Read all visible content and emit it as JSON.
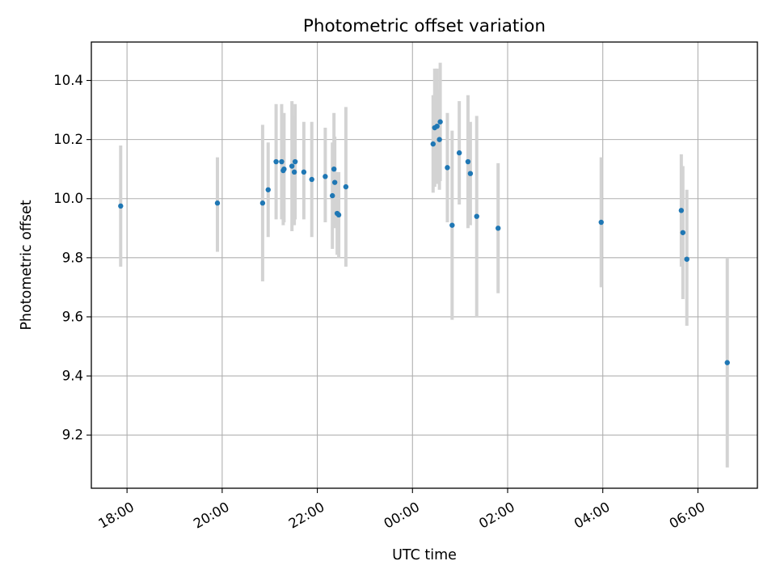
{
  "chart_data": {
    "type": "scatter",
    "title": "Photometric offset variation",
    "xlabel": "UTC time",
    "ylabel": "Photometric offset",
    "x_axis": {
      "scale": "time",
      "range": [
        "17:15",
        "07:15"
      ],
      "ticks": [
        "18:00",
        "20:00",
        "22:00",
        "00:00",
        "02:00",
        "04:00",
        "06:00"
      ],
      "tick_label_rotation": 30
    },
    "y_axis": {
      "range": [
        9.02,
        10.53
      ],
      "ticks": [
        "9.2",
        "9.4",
        "9.6",
        "9.8",
        "10.0",
        "10.2",
        "10.4"
      ]
    },
    "grid": true,
    "colors": {
      "points": "#1f77b4",
      "error_bars": "#d3d3d3",
      "grid": "#b0b0b0"
    },
    "series": [
      {
        "points": [
          {
            "x": "17:52",
            "y": 9.975,
            "ylo": 9.77,
            "yhi": 10.18
          },
          {
            "x": "19:54",
            "y": 9.985,
            "ylo": 9.82,
            "yhi": 10.14
          },
          {
            "x": "20:51",
            "y": 9.985,
            "ylo": 9.72,
            "yhi": 10.25
          },
          {
            "x": "20:58",
            "y": 10.03,
            "ylo": 9.87,
            "yhi": 10.19
          },
          {
            "x": "21:08",
            "y": 10.125,
            "ylo": 9.93,
            "yhi": 10.32
          },
          {
            "x": "21:15",
            "y": 10.125,
            "ylo": 9.93,
            "yhi": 10.32
          },
          {
            "x": "21:17",
            "y": 10.095,
            "ylo": 9.91,
            "yhi": 10.28
          },
          {
            "x": "21:18",
            "y": 10.1,
            "ylo": 9.92,
            "yhi": 10.29
          },
          {
            "x": "21:28",
            "y": 10.11,
            "ylo": 9.89,
            "yhi": 10.33
          },
          {
            "x": "21:31",
            "y": 10.09,
            "ylo": 9.91,
            "yhi": 10.28
          },
          {
            "x": "21:32",
            "y": 10.125,
            "ylo": 9.93,
            "yhi": 10.32
          },
          {
            "x": "21:43",
            "y": 10.09,
            "ylo": 9.93,
            "yhi": 10.26
          },
          {
            "x": "21:53",
            "y": 10.065,
            "ylo": 9.87,
            "yhi": 10.26
          },
          {
            "x": "22:10",
            "y": 10.075,
            "ylo": 9.92,
            "yhi": 10.24
          },
          {
            "x": "22:19",
            "y": 10.01,
            "ylo": 9.83,
            "yhi": 10.19
          },
          {
            "x": "22:21",
            "y": 10.1,
            "ylo": 9.91,
            "yhi": 10.29
          },
          {
            "x": "22:22",
            "y": 10.055,
            "ylo": 9.9,
            "yhi": 10.21
          },
          {
            "x": "22:25",
            "y": 9.95,
            "ylo": 9.81,
            "yhi": 10.09
          },
          {
            "x": "22:27",
            "y": 9.945,
            "ylo": 9.8,
            "yhi": 10.09
          },
          {
            "x": "22:36",
            "y": 10.04,
            "ylo": 9.77,
            "yhi": 10.31
          },
          {
            "x": "00:26",
            "y": 10.185,
            "ylo": 10.02,
            "yhi": 10.35
          },
          {
            "x": "00:28",
            "y": 10.24,
            "ylo": 10.04,
            "yhi": 10.44
          },
          {
            "x": "00:31",
            "y": 10.245,
            "ylo": 10.05,
            "yhi": 10.44
          },
          {
            "x": "00:34",
            "y": 10.2,
            "ylo": 10.03,
            "yhi": 10.37
          },
          {
            "x": "00:35",
            "y": 10.26,
            "ylo": 10.06,
            "yhi": 10.46
          },
          {
            "x": "00:44",
            "y": 10.105,
            "ylo": 9.92,
            "yhi": 10.29
          },
          {
            "x": "00:50",
            "y": 9.91,
            "ylo": 9.59,
            "yhi": 10.23
          },
          {
            "x": "00:59",
            "y": 10.155,
            "ylo": 9.98,
            "yhi": 10.33
          },
          {
            "x": "01:10",
            "y": 10.125,
            "ylo": 9.9,
            "yhi": 10.35
          },
          {
            "x": "01:13",
            "y": 10.085,
            "ylo": 9.91,
            "yhi": 10.26
          },
          {
            "x": "01:21",
            "y": 9.94,
            "ylo": 9.6,
            "yhi": 10.28
          },
          {
            "x": "01:48",
            "y": 9.9,
            "ylo": 9.68,
            "yhi": 10.12
          },
          {
            "x": "03:58",
            "y": 9.92,
            "ylo": 9.7,
            "yhi": 10.14
          },
          {
            "x": "05:39",
            "y": 9.96,
            "ylo": 9.77,
            "yhi": 10.15
          },
          {
            "x": "05:41",
            "y": 9.885,
            "ylo": 9.66,
            "yhi": 10.11
          },
          {
            "x": "05:46",
            "y": 9.795,
            "ylo": 9.57,
            "yhi": 10.03
          },
          {
            "x": "06:37",
            "y": 9.445,
            "ylo": 9.09,
            "yhi": 9.8
          }
        ]
      }
    ]
  }
}
